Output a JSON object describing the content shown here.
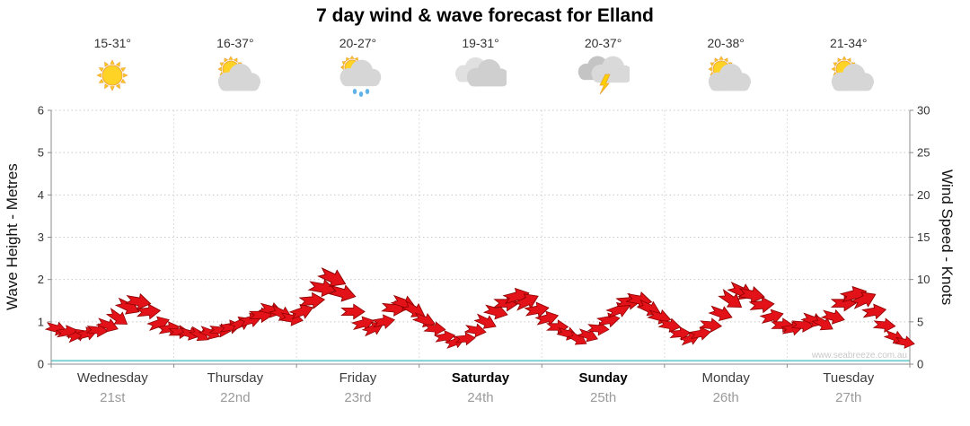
{
  "title": "7 day wind & wave forecast for Elland",
  "watermark": "www.seabreeze.com.au",
  "axes": {
    "left_label": "Wave Height - Metres",
    "right_label": "Wind Speed - Knots"
  },
  "days": [
    {
      "name": "Wednesday",
      "date": "21st",
      "temp": "15-31°",
      "icon": "sun-icon",
      "bold": false
    },
    {
      "name": "Thursday",
      "date": "22nd",
      "temp": "16-37°",
      "icon": "partly-cloudy-icon",
      "bold": false
    },
    {
      "name": "Friday",
      "date": "23rd",
      "temp": "20-27°",
      "icon": "rain-showers-icon",
      "bold": false
    },
    {
      "name": "Saturday",
      "date": "24th",
      "temp": "19-31°",
      "icon": "cloudy-icon",
      "bold": true
    },
    {
      "name": "Sunday",
      "date": "25th",
      "temp": "20-37°",
      "icon": "thunderstorm-icon",
      "bold": true
    },
    {
      "name": "Monday",
      "date": "26th",
      "temp": "20-38°",
      "icon": "partly-cloudy-icon",
      "bold": false
    },
    {
      "name": "Tuesday",
      "date": "27th",
      "temp": "21-34°",
      "icon": "partly-cloudy-icon",
      "bold": false
    }
  ],
  "chart_data": {
    "type": "line",
    "title": "7 day wind & wave forecast for Elland",
    "x_categories": [
      "Wednesday 21st",
      "Thursday 22nd",
      "Friday 23rd",
      "Saturday 24th",
      "Sunday 25th",
      "Monday 26th",
      "Tuesday 27th"
    ],
    "points_per_day": 12,
    "left_axis": {
      "label": "Wave Height - Metres",
      "range": [
        0,
        6
      ],
      "ticks": [
        0,
        1,
        2,
        3,
        4,
        5,
        6
      ]
    },
    "right_axis": {
      "label": "Wind Speed - Knots",
      "range": [
        0,
        30
      ],
      "ticks": [
        0,
        5,
        10,
        15,
        20,
        25,
        30
      ]
    },
    "grid": true,
    "watermark": "www.seabreeze.com.au",
    "colors": {
      "wind_arrow": "#e31219",
      "wind_arrow_outline": "#8f0000",
      "wave_line": "#7ecfcf",
      "grid_line": "#c8c8c8",
      "axis_line": "#8c8c8c"
    },
    "series": [
      {
        "name": "Wind Speed (knots)",
        "type": "wind-arrows",
        "axis": "right",
        "values": [
          4.2,
          3.8,
          3.4,
          3.6,
          4.0,
          4.6,
          5.5,
          6.8,
          7.4,
          6.2,
          4.8,
          4.2,
          3.8,
          3.6,
          3.5,
          3.7,
          4.0,
          4.4,
          4.8,
          5.2,
          5.8,
          6.4,
          6.0,
          5.4,
          6.2,
          7.5,
          9.0,
          10.2,
          8.4,
          6.2,
          4.8,
          4.2,
          5.0,
          6.6,
          7.2,
          6.4,
          5.2,
          4.2,
          3.2,
          2.6,
          3.0,
          4.0,
          5.0,
          6.2,
          7.2,
          8.0,
          7.4,
          6.4,
          5.4,
          4.4,
          3.6,
          3.0,
          3.4,
          4.2,
          5.2,
          6.4,
          7.4,
          7.6,
          6.6,
          5.6,
          4.6,
          3.6,
          3.0,
          3.6,
          4.6,
          6.0,
          7.6,
          8.6,
          8.2,
          7.0,
          5.6,
          4.6,
          4.2,
          4.6,
          5.2,
          4.8,
          5.6,
          7.2,
          8.2,
          7.6,
          6.2,
          4.6,
          3.2,
          2.6
        ],
        "directions_deg": [
          15,
          -10,
          -25,
          -15,
          5,
          20,
          35,
          25,
          10,
          -5,
          -20,
          -10,
          0,
          15,
          30,
          20,
          5,
          -10,
          -25,
          -15,
          0,
          15,
          25,
          10,
          -20,
          -5,
          10,
          25,
          15,
          0,
          -15,
          -25,
          -10,
          5,
          20,
          30,
          20,
          5,
          -10,
          -20,
          -5,
          10,
          25,
          15,
          0,
          -15,
          -25,
          -10,
          -15,
          0,
          15,
          30,
          20,
          5,
          -10,
          -20,
          -5,
          10,
          25,
          15,
          10,
          -5,
          -20,
          -10,
          5,
          20,
          35,
          25,
          10,
          -5,
          -15,
          0,
          -10,
          5,
          20,
          30,
          15,
          0,
          -15,
          -25,
          -10,
          5,
          20,
          10
        ]
      },
      {
        "name": "Wave Height (metres)",
        "type": "line",
        "axis": "left",
        "flat_value": 0.08
      }
    ]
  }
}
